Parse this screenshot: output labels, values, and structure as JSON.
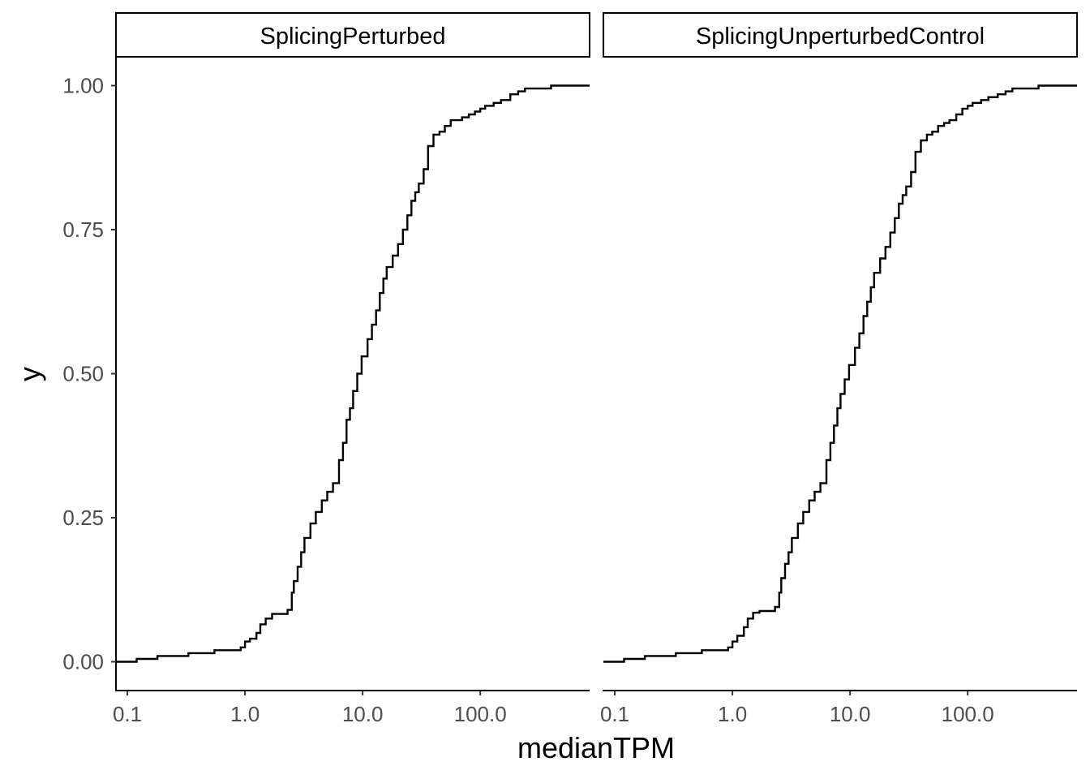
{
  "chart_data": {
    "type": "line",
    "subtype": "ecdf-step",
    "facets": [
      "SplicingPerturbed",
      "SplicingUnperturbedControl"
    ],
    "xlabel": "medianTPM",
    "ylabel": "y",
    "x_scale": "log10",
    "xlim": [
      0.08,
      850
    ],
    "ylim": [
      -0.05,
      1.05
    ],
    "x_ticks": [
      0.1,
      1,
      10,
      100
    ],
    "x_tick_labels": [
      "0.1",
      "1.0",
      "10.0",
      "100.0"
    ],
    "y_ticks": [
      0,
      0.25,
      0.5,
      0.75,
      1
    ],
    "y_tick_labels": [
      "0.00",
      "0.25",
      "0.50",
      "0.75",
      "1.00"
    ],
    "grid": false,
    "legend": "none",
    "line_color": "#000000",
    "series": [
      {
        "facet": "SplicingPerturbed",
        "x": [
          0.08,
          0.1,
          0.12,
          0.18,
          0.33,
          0.55,
          0.85,
          0.92,
          1.0,
          1.1,
          1.25,
          1.35,
          1.5,
          1.7,
          1.9,
          2.3,
          2.5,
          2.6,
          2.8,
          3.0,
          3.2,
          3.6,
          4.0,
          4.5,
          5.0,
          5.6,
          6.3,
          6.8,
          7.3,
          7.8,
          8.3,
          9.0,
          9.8,
          11,
          12,
          13,
          14,
          15,
          16,
          18,
          20,
          22,
          24,
          26,
          28,
          30,
          33,
          36,
          40,
          45,
          50,
          56,
          63,
          70,
          80,
          90,
          100,
          110,
          130,
          150,
          180,
          210,
          240,
          280,
          400,
          600,
          850
        ],
        "y": [
          0.0,
          0.0,
          0.005,
          0.01,
          0.015,
          0.02,
          0.02,
          0.025,
          0.035,
          0.04,
          0.05,
          0.065,
          0.075,
          0.083,
          0.083,
          0.09,
          0.12,
          0.14,
          0.165,
          0.19,
          0.215,
          0.24,
          0.26,
          0.28,
          0.295,
          0.31,
          0.35,
          0.38,
          0.42,
          0.44,
          0.47,
          0.5,
          0.53,
          0.56,
          0.585,
          0.61,
          0.64,
          0.665,
          0.685,
          0.705,
          0.725,
          0.75,
          0.775,
          0.8,
          0.815,
          0.83,
          0.855,
          0.895,
          0.915,
          0.92,
          0.93,
          0.94,
          0.94,
          0.945,
          0.95,
          0.955,
          0.96,
          0.965,
          0.97,
          0.975,
          0.985,
          0.99,
          0.995,
          0.995,
          1.0,
          1.0,
          1.0
        ]
      },
      {
        "facet": "SplicingUnperturbedControl",
        "x": [
          0.08,
          0.1,
          0.12,
          0.18,
          0.33,
          0.55,
          0.85,
          0.92,
          1.0,
          1.1,
          1.25,
          1.35,
          1.5,
          1.7,
          1.9,
          2.3,
          2.5,
          2.6,
          2.8,
          3.0,
          3.2,
          3.6,
          4.0,
          4.5,
          5.0,
          5.6,
          6.3,
          6.8,
          7.3,
          7.8,
          8.3,
          9.0,
          9.8,
          11,
          12,
          13,
          14,
          15,
          16,
          18,
          20,
          22,
          24,
          26,
          28,
          30,
          33,
          36,
          40,
          45,
          50,
          56,
          63,
          70,
          80,
          90,
          100,
          110,
          130,
          150,
          180,
          210,
          240,
          280,
          400,
          600,
          850
        ],
        "y": [
          0.0,
          0.0,
          0.005,
          0.01,
          0.015,
          0.02,
          0.02,
          0.025,
          0.035,
          0.045,
          0.06,
          0.075,
          0.085,
          0.088,
          0.088,
          0.095,
          0.12,
          0.145,
          0.17,
          0.19,
          0.215,
          0.24,
          0.26,
          0.28,
          0.295,
          0.31,
          0.35,
          0.38,
          0.41,
          0.44,
          0.465,
          0.49,
          0.515,
          0.545,
          0.57,
          0.6,
          0.625,
          0.65,
          0.675,
          0.7,
          0.72,
          0.745,
          0.77,
          0.795,
          0.81,
          0.825,
          0.85,
          0.885,
          0.905,
          0.915,
          0.92,
          0.93,
          0.935,
          0.94,
          0.95,
          0.96,
          0.965,
          0.97,
          0.975,
          0.98,
          0.985,
          0.99,
          0.995,
          0.995,
          1.0,
          1.0,
          1.0
        ]
      }
    ]
  }
}
